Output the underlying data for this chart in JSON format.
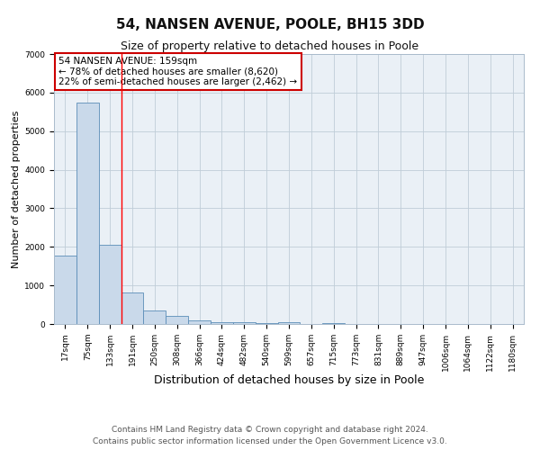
{
  "title": "54, NANSEN AVENUE, POOLE, BH15 3DD",
  "subtitle": "Size of property relative to detached houses in Poole",
  "xlabel": "Distribution of detached houses by size in Poole",
  "ylabel": "Number of detached properties",
  "bin_labels": [
    "17sqm",
    "75sqm",
    "133sqm",
    "191sqm",
    "250sqm",
    "308sqm",
    "366sqm",
    "424sqm",
    "482sqm",
    "540sqm",
    "599sqm",
    "657sqm",
    "715sqm",
    "773sqm",
    "831sqm",
    "889sqm",
    "947sqm",
    "1006sqm",
    "1064sqm",
    "1122sqm",
    "1180sqm"
  ],
  "bar_heights": [
    1780,
    5750,
    2060,
    820,
    360,
    220,
    100,
    55,
    40,
    35,
    40,
    0,
    30,
    0,
    0,
    0,
    0,
    0,
    0,
    0,
    0
  ],
  "bar_color": "#c9d9ea",
  "bar_edge_color": "#5b8db8",
  "background_color": "#eaf0f6",
  "grid_color": "#c0cdd8",
  "red_line_x": 2.5,
  "annotation_text": "54 NANSEN AVENUE: 159sqm\n← 78% of detached houses are smaller (8,620)\n22% of semi-detached houses are larger (2,462) →",
  "annotation_box_color": "#ffffff",
  "annotation_box_edge": "#cc0000",
  "ylim": [
    0,
    7000
  ],
  "yticks": [
    0,
    1000,
    2000,
    3000,
    4000,
    5000,
    6000,
    7000
  ],
  "footer_line1": "Contains HM Land Registry data © Crown copyright and database right 2024.",
  "footer_line2": "Contains public sector information licensed under the Open Government Licence v3.0.",
  "title_fontsize": 11,
  "subtitle_fontsize": 9,
  "xlabel_fontsize": 9,
  "ylabel_fontsize": 8,
  "tick_fontsize": 6.5,
  "annotation_fontsize": 7.5,
  "footer_fontsize": 6.5
}
